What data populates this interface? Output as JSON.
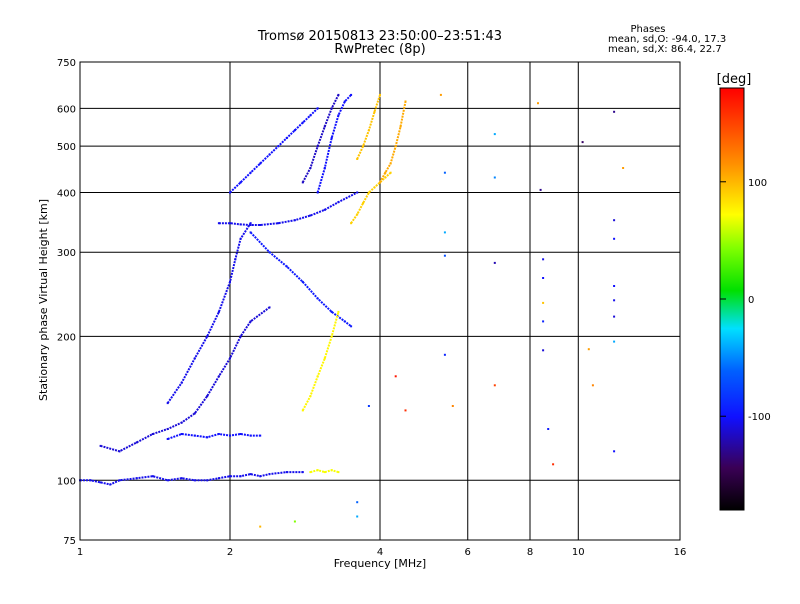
{
  "chart_data": {
    "type": "scatter",
    "title": "Tromsø 20150813 23:50:00–23:51:43",
    "subtitle": "RwPretec (8p)",
    "xlabel": "Frequency [MHz]",
    "ylabel": "Stationary phase Virtual Height [km]",
    "x_scale": "log",
    "y_scale": "log",
    "xlim": [
      1,
      16
    ],
    "ylim": [
      75,
      750
    ],
    "x_ticks": [
      1,
      2,
      4,
      6,
      8,
      10,
      16
    ],
    "x_tick_labels": [
      "1",
      "2",
      "4",
      "6",
      "8",
      "10",
      "16"
    ],
    "y_ticks": [
      75,
      100,
      200,
      300,
      400,
      500,
      600,
      750
    ],
    "y_tick_labels": [
      "75",
      "100",
      "200",
      "300",
      "400",
      "500",
      "600",
      "750"
    ],
    "grid": true,
    "stats": {
      "heading": "Phases",
      "line_o": "mean, sd,O: -94.0, 17.3",
      "line_x": "mean, sd,X: 86.4, 22.7"
    },
    "colorbar": {
      "label": "[deg]",
      "min": -180,
      "max": 180,
      "ticks": [
        100,
        0,
        -100
      ],
      "tick_labels": [
        "100",
        "0",
        "-100"
      ]
    },
    "traces": [
      {
        "x": [
          1.0,
          1.05,
          1.1,
          1.15,
          1.2,
          1.3,
          1.4,
          1.5,
          1.6,
          1.7,
          1.8,
          1.9,
          2.0,
          2.1,
          2.2,
          2.3,
          2.4,
          2.6,
          2.8
        ],
        "y": [
          100,
          100,
          99,
          98,
          100,
          101,
          102,
          100,
          101,
          100,
          100,
          101,
          102,
          102,
          103,
          102,
          103,
          104,
          104
        ],
        "phase": -105
      },
      {
        "x": [
          1.1,
          1.2,
          1.3,
          1.4,
          1.5,
          1.6,
          1.7,
          1.8,
          1.9,
          2.0,
          2.1,
          2.2,
          2.4
        ],
        "y": [
          118,
          115,
          120,
          125,
          128,
          132,
          138,
          150,
          165,
          180,
          200,
          215,
          230
        ],
        "phase": -110
      },
      {
        "x": [
          1.5,
          1.6,
          1.7,
          1.8,
          1.9,
          2.0,
          2.1,
          2.2,
          2.3
        ],
        "y": [
          122,
          125,
          124,
          123,
          125,
          124,
          125,
          124,
          124
        ],
        "phase": -100
      },
      {
        "x": [
          1.5,
          1.6,
          1.7,
          1.8,
          1.9,
          2.0,
          2.05,
          2.1,
          2.2
        ],
        "y": [
          145,
          160,
          180,
          200,
          225,
          260,
          290,
          320,
          345
        ],
        "phase": -105
      },
      {
        "x": [
          1.9,
          2.0,
          2.1,
          2.2,
          2.3,
          2.5,
          2.7,
          2.9,
          3.1,
          3.3,
          3.6
        ],
        "y": [
          345,
          345,
          343,
          342,
          342,
          345,
          350,
          358,
          368,
          382,
          400
        ],
        "phase": -105
      },
      {
        "x": [
          2.0,
          2.1,
          2.2,
          2.3,
          2.4,
          2.5,
          2.6,
          2.7,
          2.8,
          2.9,
          3.0
        ],
        "y": [
          400,
          420,
          440,
          460,
          480,
          500,
          520,
          540,
          560,
          580,
          600
        ],
        "phase": -100
      },
      {
        "x": [
          2.2,
          2.4,
          2.6,
          2.8,
          3.0,
          3.2,
          3.4,
          3.5
        ],
        "y": [
          330,
          300,
          280,
          260,
          240,
          225,
          215,
          210
        ],
        "phase": -95
      },
      {
        "x": [
          2.8,
          2.9,
          3.0,
          3.1,
          3.2,
          3.3
        ],
        "y": [
          420,
          450,
          500,
          550,
          600,
          640
        ],
        "phase": -115
      },
      {
        "x": [
          3.0,
          3.1,
          3.2,
          3.3,
          3.4,
          3.5
        ],
        "y": [
          400,
          450,
          520,
          580,
          620,
          640
        ],
        "phase": -100
      },
      {
        "x": [
          2.8,
          2.9,
          3.0,
          3.1,
          3.2,
          3.3
        ],
        "y": [
          140,
          150,
          165,
          180,
          200,
          225
        ],
        "phase": 75
      },
      {
        "x": [
          2.9,
          3.0,
          3.1,
          3.2,
          3.3
        ],
        "y": [
          104,
          105,
          104,
          105,
          104
        ],
        "phase": 70
      },
      {
        "x": [
          3.5,
          3.6,
          3.7,
          3.8,
          3.9,
          4.0,
          4.1,
          4.2
        ],
        "y": [
          345,
          360,
          380,
          400,
          410,
          420,
          430,
          440
        ],
        "phase": 90
      },
      {
        "x": [
          4.0,
          4.1,
          4.2,
          4.3,
          4.4,
          4.5
        ],
        "y": [
          420,
          440,
          460,
          500,
          550,
          620
        ],
        "phase": 105
      },
      {
        "x": [
          3.6,
          3.7,
          3.8,
          3.9,
          4.0
        ],
        "y": [
          470,
          500,
          540,
          590,
          640
        ],
        "phase": 95
      }
    ],
    "points": [
      {
        "x": 5.3,
        "y": 640,
        "phase": 110
      },
      {
        "x": 5.4,
        "y": 440,
        "phase": -60
      },
      {
        "x": 5.4,
        "y": 330,
        "phase": -40
      },
      {
        "x": 5.4,
        "y": 295,
        "phase": -70
      },
      {
        "x": 5.4,
        "y": 183,
        "phase": -90
      },
      {
        "x": 5.6,
        "y": 143,
        "phase": 120
      },
      {
        "x": 6.8,
        "y": 530,
        "phase": -40
      },
      {
        "x": 6.8,
        "y": 430,
        "phase": -50
      },
      {
        "x": 6.8,
        "y": 285,
        "phase": -120
      },
      {
        "x": 6.8,
        "y": 158,
        "phase": 150
      },
      {
        "x": 8.3,
        "y": 615,
        "phase": 110
      },
      {
        "x": 8.4,
        "y": 405,
        "phase": -130
      },
      {
        "x": 8.5,
        "y": 290,
        "phase": -105
      },
      {
        "x": 8.5,
        "y": 265,
        "phase": -100
      },
      {
        "x": 8.5,
        "y": 235,
        "phase": 95
      },
      {
        "x": 8.5,
        "y": 215,
        "phase": -90
      },
      {
        "x": 8.5,
        "y": 187,
        "phase": -110
      },
      {
        "x": 8.7,
        "y": 128,
        "phase": -95
      },
      {
        "x": 8.9,
        "y": 108,
        "phase": 160
      },
      {
        "x": 10.2,
        "y": 510,
        "phase": -140
      },
      {
        "x": 10.5,
        "y": 188,
        "phase": 110
      },
      {
        "x": 10.7,
        "y": 158,
        "phase": 120
      },
      {
        "x": 11.8,
        "y": 590,
        "phase": -130
      },
      {
        "x": 11.8,
        "y": 350,
        "phase": -110
      },
      {
        "x": 11.8,
        "y": 320,
        "phase": -100
      },
      {
        "x": 11.8,
        "y": 255,
        "phase": -100
      },
      {
        "x": 11.8,
        "y": 238,
        "phase": -105
      },
      {
        "x": 11.8,
        "y": 220,
        "phase": -110
      },
      {
        "x": 11.8,
        "y": 195,
        "phase": -40
      },
      {
        "x": 11.8,
        "y": 115,
        "phase": -100
      },
      {
        "x": 12.3,
        "y": 450,
        "phase": 110
      },
      {
        "x": 4.5,
        "y": 140,
        "phase": 160
      },
      {
        "x": 4.3,
        "y": 165,
        "phase": 170
      },
      {
        "x": 3.8,
        "y": 143,
        "phase": -80
      },
      {
        "x": 2.3,
        "y": 80,
        "phase": 100
      },
      {
        "x": 2.7,
        "y": 82,
        "phase": 40
      },
      {
        "x": 3.6,
        "y": 84,
        "phase": -40
      },
      {
        "x": 3.6,
        "y": 90,
        "phase": -60
      }
    ]
  }
}
